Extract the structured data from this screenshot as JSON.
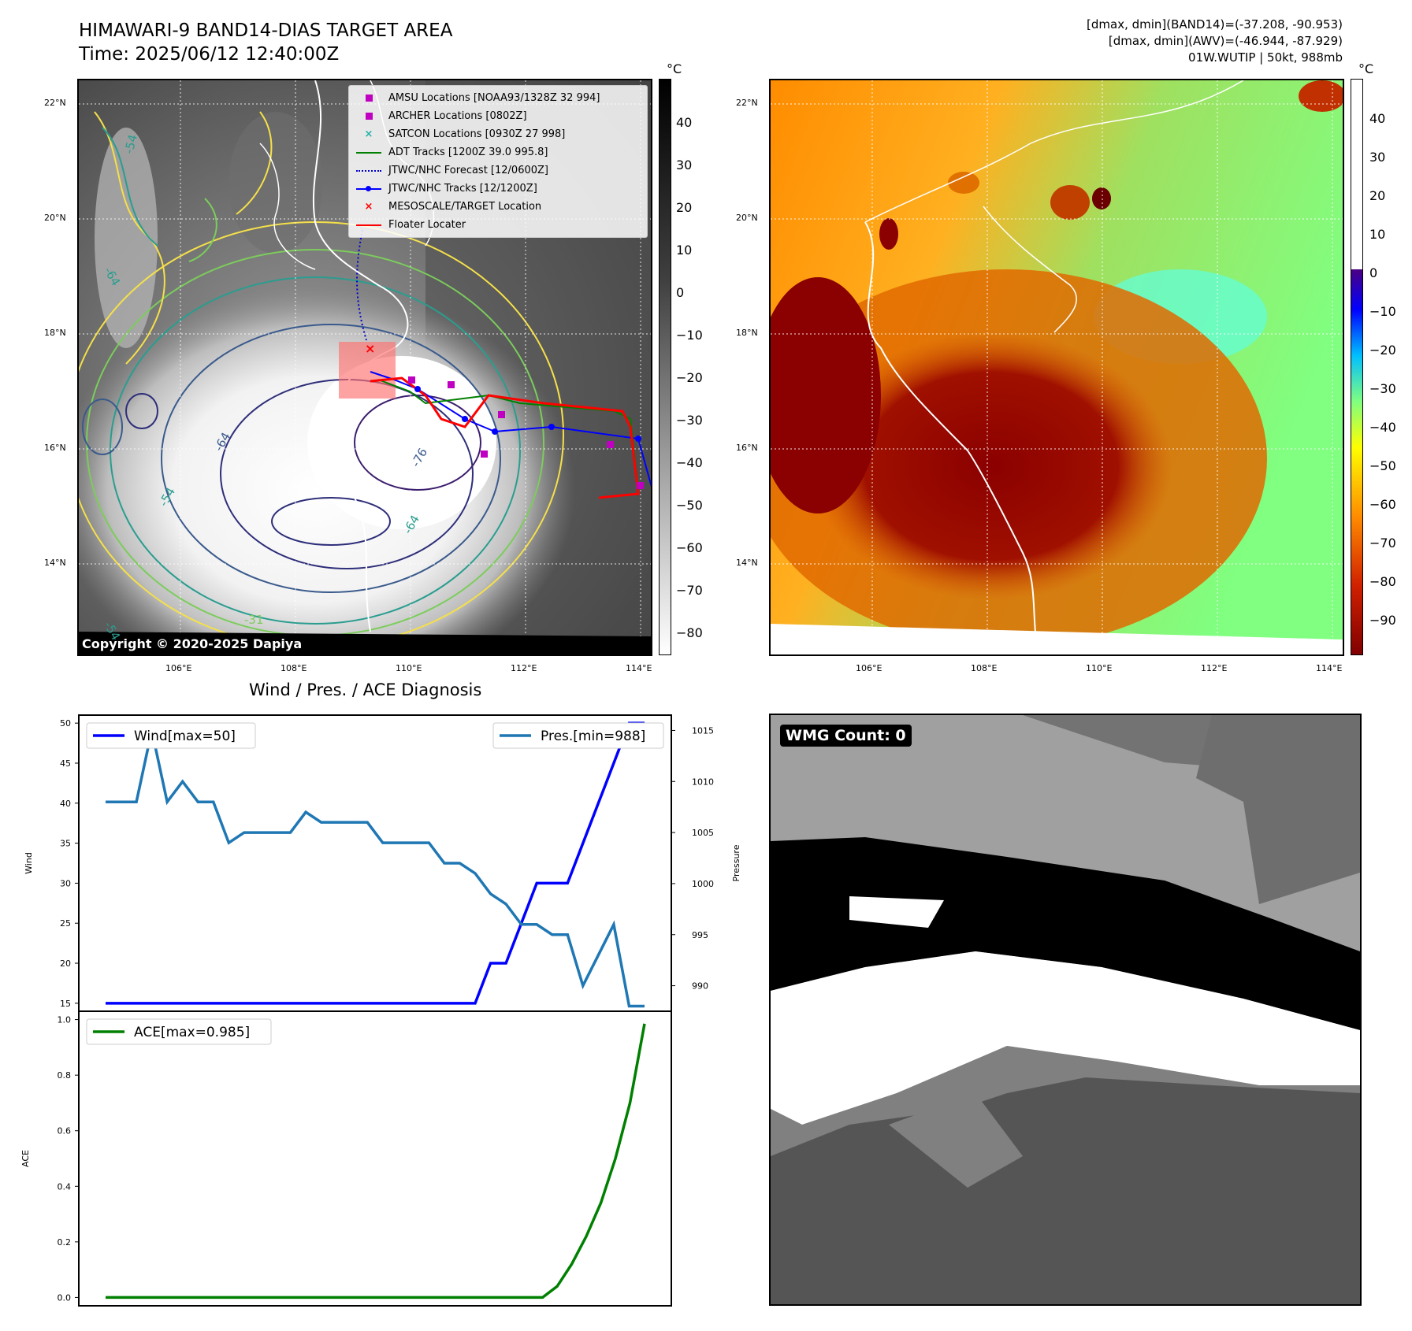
{
  "header": {
    "title_line1": "HIMAWARI-9 BAND14-DIAS TARGET AREA",
    "title_line2": "Time: 2025/06/12 12:40:00Z",
    "info_line1": "[dmax, dmin](BAND14)=(-37.208, -90.953)",
    "info_line2": "[dmax, dmin](AWV)=(-46.944, -87.929)",
    "info_line3": "01W.WUTIP | 50kt, 988mb"
  },
  "map_axes": {
    "lat_labels": [
      "22°N",
      "20°N",
      "18°N",
      "16°N",
      "14°N"
    ],
    "lon_labels": [
      "106°E",
      "108°E",
      "110°E",
      "112°E",
      "114°E"
    ]
  },
  "ir_colorbar": {
    "unit": "°C",
    "ticks": [
      "40",
      "30",
      "20",
      "10",
      "0",
      "−10",
      "−20",
      "−30",
      "−40",
      "−50",
      "−60",
      "−70",
      "−80"
    ]
  },
  "awv_colorbar": {
    "unit": "°C",
    "ticks": [
      "40",
      "30",
      "20",
      "10",
      "0",
      "−10",
      "−20",
      "−30",
      "−40",
      "−50",
      "−60",
      "−70",
      "−80",
      "−90"
    ]
  },
  "contour_labels": [
    "-54",
    "-64",
    "-64",
    "-76",
    "-64",
    "-31",
    "-54",
    "-54"
  ],
  "legend": {
    "items": [
      {
        "label": "AMSU Locations [NOAA93/1328Z 32 994]",
        "color": "#c000c0",
        "marker": "square"
      },
      {
        "label": "ARCHER Locations [0802Z]",
        "color": "#c000c0",
        "marker": "square"
      },
      {
        "label": "SATCON Locations [0930Z 27 998]",
        "color": "#20b2aa",
        "marker": "x"
      },
      {
        "label": "ADT Tracks [1200Z 39.0 995.8]",
        "color": "#008000",
        "marker": "line"
      },
      {
        "label": "JTWC/NHC Forecast [12/0600Z]",
        "color": "#0000cc",
        "marker": "dotted"
      },
      {
        "label": "JTWC/NHC Tracks [12/1200Z]",
        "color": "#0000ff",
        "marker": "line-dot"
      },
      {
        "label": "MESOSCALE/TARGET Location",
        "color": "#ff0000",
        "marker": "x"
      },
      {
        "label": "Floater Locater",
        "color": "#ff0000",
        "marker": "line"
      }
    ]
  },
  "copyright": "Copyright © 2020-2025 Dapiya",
  "wmg": {
    "label": "WMG Count: 0"
  },
  "colors": {
    "wind": "#0000ff",
    "pressure": "#1f77b4",
    "ace": "#008000",
    "track_red": "#ff0000",
    "track_blue": "#0000ff",
    "track_green": "#008000"
  },
  "chart_data": [
    {
      "type": "line",
      "title": "Wind / Pres. / ACE Diagnosis",
      "ylabel": "Wind",
      "ylabel_right": "Pressure",
      "ylim": [
        14,
        51
      ],
      "ylim_right": [
        987.5,
        1016.5
      ],
      "yticks": [
        15,
        20,
        25,
        30,
        35,
        40,
        45,
        50
      ],
      "yticks_right": [
        990,
        995,
        1000,
        1005,
        1010,
        1015
      ],
      "series": [
        {
          "name": "Wind[max=50]",
          "values": [
            15,
            15,
            15,
            15,
            15,
            15,
            15,
            15,
            15,
            15,
            15,
            15,
            15,
            15,
            15,
            15,
            15,
            15,
            15,
            15,
            15,
            15,
            15,
            15,
            15,
            20,
            20,
            25,
            30,
            30,
            30,
            35,
            40,
            45,
            50,
            50
          ]
        },
        {
          "name": "Pres.[min=988]",
          "values": [
            1008,
            1008,
            1008,
            1015,
            1008,
            1010,
            1008,
            1008,
            1004,
            1005,
            1005,
            1005,
            1005,
            1007,
            1006,
            1006,
            1006,
            1006,
            1004,
            1004,
            1004,
            1004,
            1002,
            1002,
            1001,
            999,
            998,
            996,
            996,
            995,
            995,
            990,
            993,
            996,
            988,
            988
          ]
        }
      ]
    },
    {
      "type": "line",
      "ylabel": "ACE",
      "ylim": [
        -0.03,
        1.03
      ],
      "yticks": [
        0.0,
        0.2,
        0.4,
        0.6,
        0.8,
        1.0
      ],
      "series": [
        {
          "name": "ACE[max=0.985]",
          "values": [
            0,
            0,
            0,
            0,
            0,
            0,
            0,
            0,
            0,
            0,
            0,
            0,
            0,
            0,
            0,
            0,
            0,
            0,
            0,
            0,
            0,
            0,
            0,
            0,
            0,
            0,
            0,
            0,
            0,
            0,
            0,
            0.04,
            0.12,
            0.22,
            0.34,
            0.5,
            0.7,
            0.985
          ]
        }
      ]
    }
  ]
}
